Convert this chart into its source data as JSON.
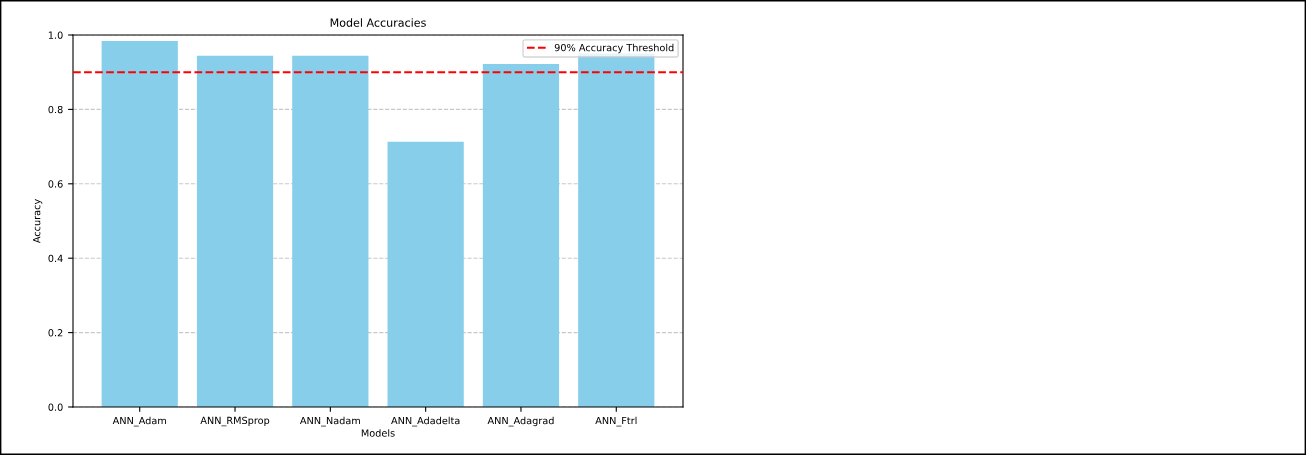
{
  "chart_data": {
    "type": "bar",
    "title": "Model Accuracies",
    "xlabel": "Models",
    "ylabel": "Accuracy",
    "categories": [
      "ANN_Adam",
      "ANN_RMSprop",
      "ANN_Nadam",
      "ANN_Adadelta",
      "ANN_Adagrad",
      "ANN_Ftrl"
    ],
    "values": [
      0.984,
      0.944,
      0.944,
      0.713,
      0.922,
      0.95
    ],
    "color": "#87ceeb",
    "ylim": [
      0,
      1.0
    ],
    "yticks": [
      {
        "value": 0,
        "label": "0.0"
      },
      {
        "value": 0.2,
        "label": "0.2"
      },
      {
        "value": 0.4,
        "label": "0.4"
      },
      {
        "value": 0.6,
        "label": "0.6"
      },
      {
        "value": 0.8,
        "label": "0.8"
      },
      {
        "value": 1.0,
        "label": "1.0"
      }
    ],
    "grid": "y",
    "ref_lines": [
      {
        "axis": "y",
        "value": 0.9,
        "label": "90% Accuracy Threshold",
        "color": "#ff0000",
        "line_style": "dashed"
      }
    ],
    "legend": "top right"
  }
}
